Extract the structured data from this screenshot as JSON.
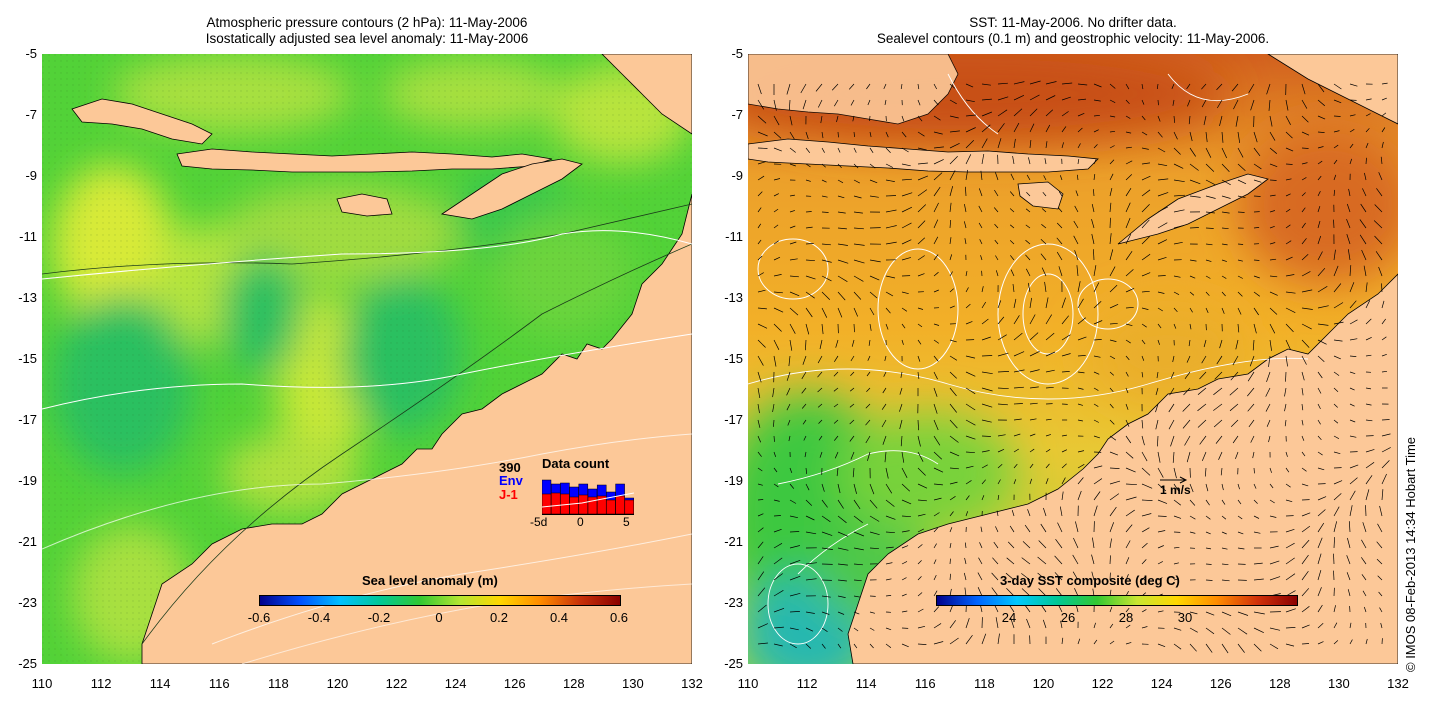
{
  "left_panel": {
    "title_line1": "Atmospheric pressure contours (2 hPa): 11-May-2006",
    "title_line2": "Isostatically adjusted sea level anomaly: 11-May-2006",
    "colorbar_title": "Sea level anomaly (m)",
    "colorbar_ticks": [
      "-0.6",
      "-0.4",
      "-0.2",
      "0",
      "0.2",
      "0.4",
      "0.6"
    ],
    "colorbar_colors": [
      "#00008b",
      "#0050ff",
      "#00c0ff",
      "#00c896",
      "#32c832",
      "#b4e632",
      "#ffd700",
      "#ff8c00",
      "#c8320a",
      "#8b0000"
    ],
    "inset": {
      "count": "390",
      "env_label": "Env",
      "j1_label": "J-1",
      "title": "Data count",
      "x_ticks": [
        "-5d",
        "0",
        "5"
      ],
      "env_color": "#0000ff",
      "j1_color": "#ff0000"
    }
  },
  "right_panel": {
    "title_line1": "SST: 11-May-2006. No drifter data.",
    "title_line2": "Sealevel contours (0.1 m) and geostrophic velocity: 11-May-2006.",
    "colorbar_title": "3-day SST composite (deg C)",
    "colorbar_ticks": [
      "24",
      "26",
      "28",
      "30"
    ],
    "colorbar_colors": [
      "#00008b",
      "#0064ff",
      "#00c8ff",
      "#00c896",
      "#32c832",
      "#c8e632",
      "#ffd700",
      "#ff8c00",
      "#d2320a",
      "#8b0000"
    ],
    "vector_scale_label": "1 m/s"
  },
  "axes": {
    "lat_ticks": [
      "-5",
      "-7",
      "-9",
      "-11",
      "-13",
      "-15",
      "-17",
      "-19",
      "-21",
      "-23",
      "-25"
    ],
    "lon_ticks": [
      "110",
      "112",
      "114",
      "116",
      "118",
      "120",
      "122",
      "124",
      "126",
      "128",
      "130",
      "132"
    ]
  },
  "colors": {
    "land": "#fcc898",
    "ocean_green": "#4cd43a",
    "sst_orange": "#f0a028"
  },
  "credit": "© IMOS 08-Feb-2013 14:34 Hobart Time"
}
